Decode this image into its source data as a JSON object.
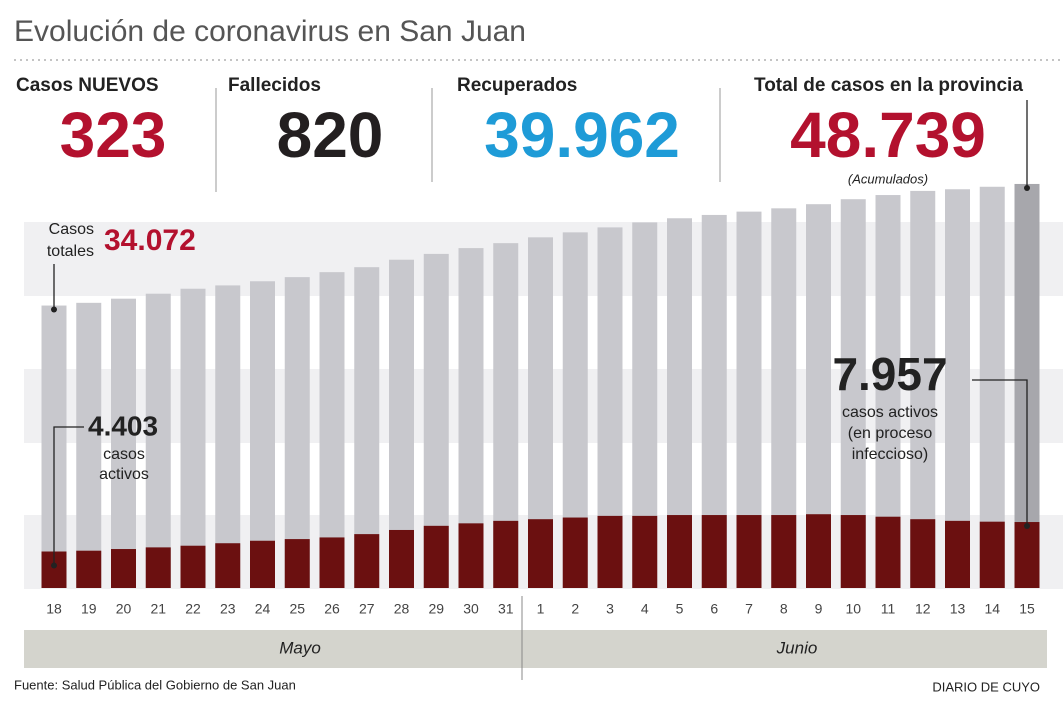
{
  "chart_data": {
    "type": "bar",
    "title": "Evolución de coronavirus en San Juan",
    "stats": [
      {
        "label": "Casos NUEVOS",
        "value": "323",
        "color": "#b3112e"
      },
      {
        "label": "Fallecidos",
        "value": "820",
        "color": "#231f20"
      },
      {
        "label": "Recuperados",
        "value": "39.962",
        "color": "#1e9bd7"
      },
      {
        "label": "Total de casos en la provincia",
        "value": "48.739",
        "color": "#b3112e",
        "note": "(Acumulados)"
      }
    ],
    "categories": [
      "18",
      "19",
      "20",
      "21",
      "22",
      "23",
      "24",
      "25",
      "26",
      "27",
      "28",
      "29",
      "30",
      "31",
      "1",
      "2",
      "3",
      "4",
      "5",
      "6",
      "7",
      "8",
      "9",
      "10",
      "11",
      "12",
      "13",
      "14",
      "15"
    ],
    "months": [
      "Mayo",
      "Junio"
    ],
    "series": [
      {
        "name": "Casos totales",
        "color": "#c8c8cd",
        "highlight_color": "#a7a7ac",
        "values": [
          34072,
          34400,
          34900,
          35500,
          36100,
          36500,
          37000,
          37500,
          38100,
          38700,
          39600,
          40300,
          41000,
          41600,
          42300,
          42900,
          43500,
          44100,
          44600,
          45000,
          45400,
          45800,
          46300,
          46900,
          47400,
          47900,
          48100,
          48400,
          48739
        ],
        "value_labels": [
          "34.072",
          null,
          null,
          null,
          null,
          null,
          null,
          null,
          null,
          null,
          null,
          null,
          null,
          null,
          null,
          null,
          null,
          null,
          null,
          null,
          null,
          null,
          null,
          null,
          null,
          null,
          null,
          null,
          null
        ]
      },
      {
        "name": "casos activos",
        "color": "#6b1010",
        "values": [
          4403,
          4500,
          4700,
          4900,
          5100,
          5400,
          5700,
          5900,
          6100,
          6500,
          7000,
          7500,
          7800,
          8100,
          8300,
          8500,
          8700,
          8700,
          8800,
          8800,
          8800,
          8800,
          8900,
          8800,
          8600,
          8300,
          8100,
          8000,
          7957
        ],
        "value_labels": [
          "4.403",
          null,
          null,
          null,
          null,
          null,
          null,
          null,
          null,
          null,
          null,
          null,
          null,
          null,
          null,
          null,
          null,
          null,
          null,
          null,
          null,
          null,
          null,
          null,
          null,
          null,
          null,
          null,
          "7.957"
        ]
      }
    ],
    "annotations": {
      "totals": [
        "Casos",
        "totales"
      ],
      "active_first": [
        "casos",
        "activos"
      ],
      "active_last": [
        "casos activos",
        "(en proceso",
        "infeccioso)"
      ]
    },
    "ylim": [
      0,
      50000
    ],
    "source": "Fuente: Salud Pública del Gobierno de San Juan",
    "credit": "DIARIO DE CUYO"
  }
}
